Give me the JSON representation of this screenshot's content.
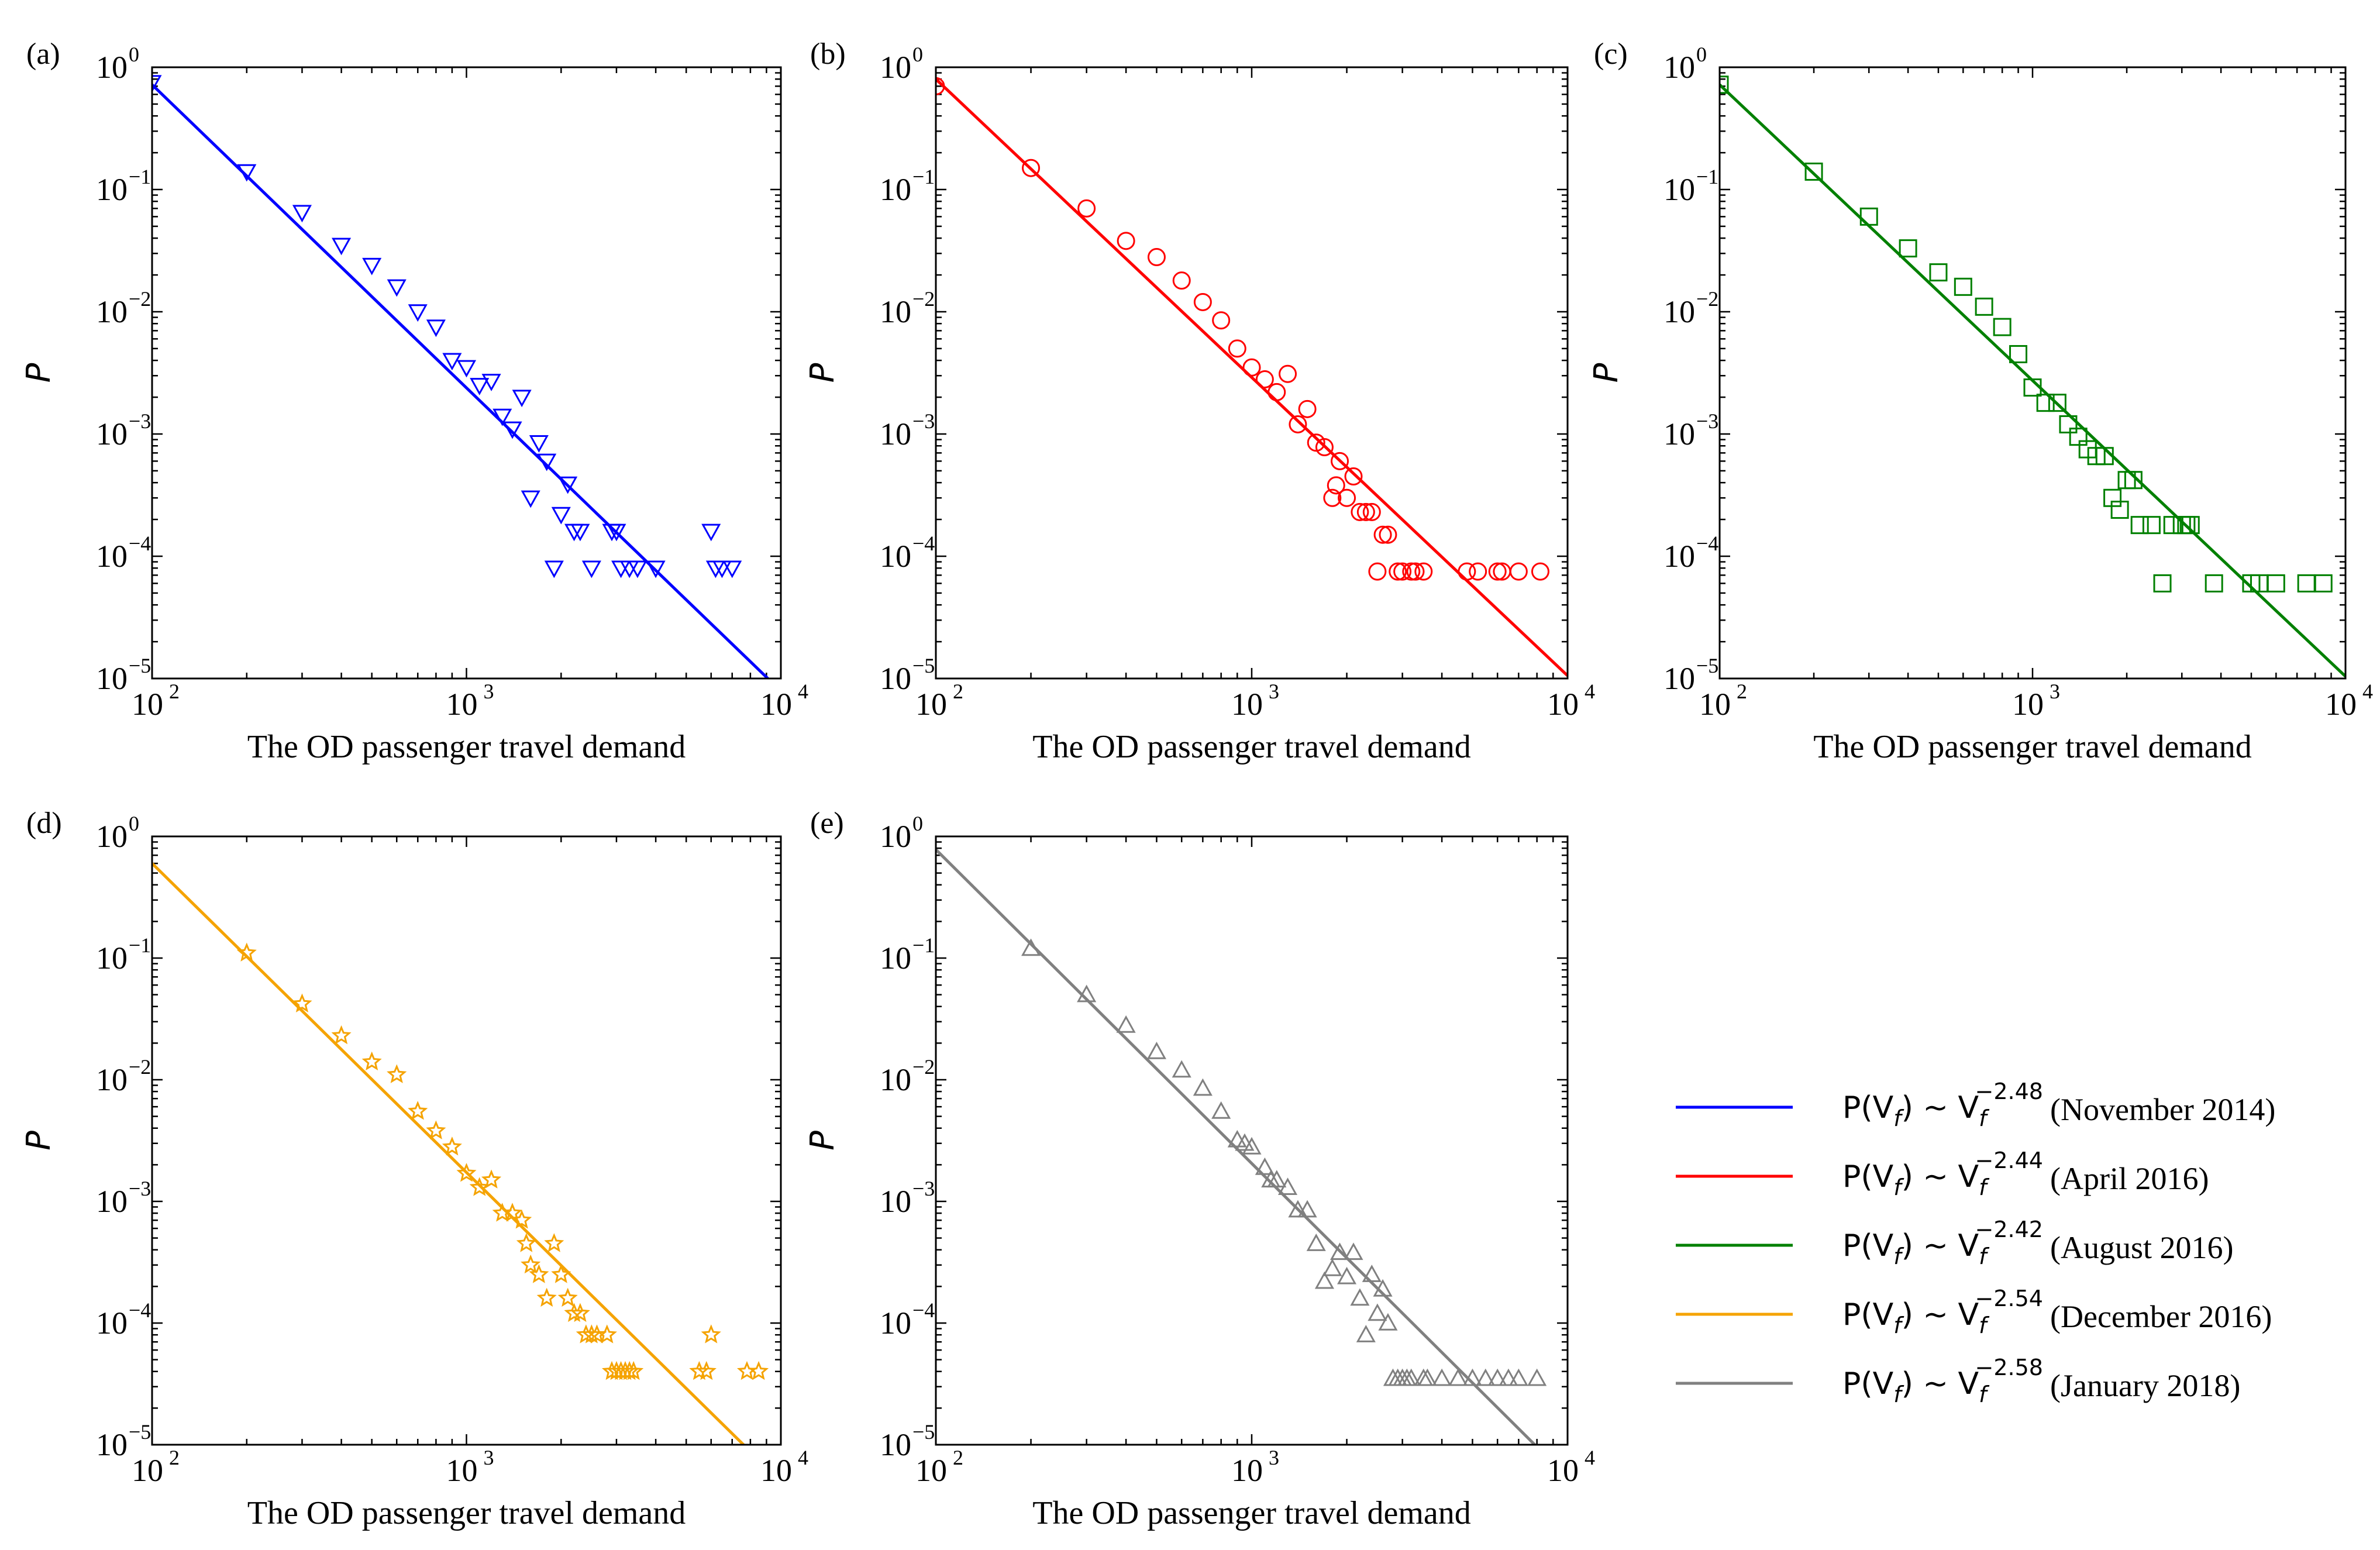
{
  "chart_data": [
    {
      "type": "scatter",
      "panel_label": "(a)",
      "xlabel": "The OD passenger travel demand",
      "ylabel": "P",
      "xscale": "log",
      "yscale": "log",
      "xlim": [
        100,
        10000
      ],
      "ylim": [
        1e-05,
        1
      ],
      "x_ticks": [
        {
          "base": "10",
          "exp": "2"
        },
        {
          "base": "10",
          "exp": "3"
        },
        {
          "base": "10",
          "exp": "4"
        }
      ],
      "y_ticks": [
        {
          "base": "10",
          "exp": "0"
        },
        {
          "base": "10",
          "exp": "−1"
        },
        {
          "base": "10",
          "exp": "−2"
        },
        {
          "base": "10",
          "exp": "−3"
        },
        {
          "base": "10",
          "exp": "−4"
        },
        {
          "base": "10",
          "exp": "−5"
        }
      ],
      "color": "#0000ff",
      "marker": "triangle-down",
      "fit": {
        "exponent": -2.48,
        "coef": 0.72
      },
      "series": [
        {
          "name": "November 2014",
          "x": [
            100,
            200,
            300,
            400,
            500,
            600,
            700,
            800,
            900,
            1000,
            1100,
            1200,
            1300,
            1400,
            1500,
            1600,
            1700,
            1800,
            1900,
            2000,
            2100,
            2200,
            2300,
            2500,
            2900,
            3000,
            3100,
            3300,
            3500,
            4000,
            6000,
            6200,
            6500,
            7000
          ],
          "y": [
            0.75,
            0.14,
            0.065,
            0.035,
            0.024,
            0.016,
            0.01,
            0.0075,
            0.004,
            0.0035,
            0.0025,
            0.0027,
            0.0014,
            0.0011,
            0.002,
            0.0003,
            0.00085,
            0.0006,
            8e-05,
            0.00022,
            0.00039,
            0.00016,
            0.00016,
            8e-05,
            0.00016,
            0.00016,
            8e-05,
            8e-05,
            8e-05,
            8e-05,
            0.00016,
            8e-05,
            8e-05,
            8e-05
          ]
        }
      ]
    },
    {
      "type": "scatter",
      "panel_label": "(b)",
      "xlabel": "The OD passenger travel demand",
      "ylabel": "P",
      "xscale": "log",
      "yscale": "log",
      "xlim": [
        100,
        10000
      ],
      "ylim": [
        1e-05,
        1
      ],
      "x_ticks": [
        {
          "base": "10",
          "exp": "2"
        },
        {
          "base": "10",
          "exp": "3"
        },
        {
          "base": "10",
          "exp": "4"
        }
      ],
      "y_ticks": [
        {
          "base": "10",
          "exp": "0"
        },
        {
          "base": "10",
          "exp": "−1"
        },
        {
          "base": "10",
          "exp": "−2"
        },
        {
          "base": "10",
          "exp": "−3"
        },
        {
          "base": "10",
          "exp": "−4"
        },
        {
          "base": "10",
          "exp": "−5"
        }
      ],
      "color": "#ff0000",
      "marker": "circle",
      "fit": {
        "exponent": -2.44,
        "coef": 0.8
      },
      "series": [
        {
          "name": "April 2016",
          "x": [
            100,
            200,
            300,
            400,
            500,
            600,
            700,
            800,
            900,
            1000,
            1100,
            1200,
            1300,
            1400,
            1500,
            1600,
            1700,
            1800,
            1850,
            1900,
            2000,
            2100,
            2200,
            2300,
            2400,
            2500,
            2600,
            2700,
            2900,
            3000,
            3200,
            3300,
            3500,
            4800,
            5200,
            6000,
            6200,
            7000,
            8200
          ],
          "y": [
            0.7,
            0.15,
            0.07,
            0.038,
            0.028,
            0.018,
            0.012,
            0.0085,
            0.005,
            0.0035,
            0.0028,
            0.0022,
            0.0031,
            0.0012,
            0.0016,
            0.00085,
            0.00078,
            0.0003,
            0.00038,
            0.0006,
            0.0003,
            0.00045,
            0.00023,
            0.00023,
            0.00023,
            7.5e-05,
            0.00015,
            0.00015,
            7.5e-05,
            7.5e-05,
            7.5e-05,
            7.5e-05,
            7.5e-05,
            7.5e-05,
            7.5e-05,
            7.5e-05,
            7.5e-05,
            7.5e-05,
            7.5e-05
          ]
        }
      ]
    },
    {
      "type": "scatter",
      "panel_label": "(c)",
      "xlabel": "The OD passenger travel demand",
      "ylabel": "P",
      "xscale": "log",
      "yscale": "log",
      "xlim": [
        100,
        10000
      ],
      "ylim": [
        1e-05,
        1
      ],
      "x_ticks": [
        {
          "base": "10",
          "exp": "2"
        },
        {
          "base": "10",
          "exp": "3"
        },
        {
          "base": "10",
          "exp": "4"
        }
      ],
      "y_ticks": [
        {
          "base": "10",
          "exp": "0"
        },
        {
          "base": "10",
          "exp": "−1"
        },
        {
          "base": "10",
          "exp": "−2"
        },
        {
          "base": "10",
          "exp": "−3"
        },
        {
          "base": "10",
          "exp": "−4"
        },
        {
          "base": "10",
          "exp": "−5"
        }
      ],
      "color": "#008000",
      "marker": "square",
      "fit": {
        "exponent": -2.42,
        "coef": 0.72
      },
      "series": [
        {
          "name": "August 2016",
          "x": [
            100,
            200,
            300,
            400,
            500,
            600,
            700,
            800,
            900,
            1000,
            1100,
            1200,
            1300,
            1400,
            1500,
            1600,
            1700,
            1800,
            1900,
            2000,
            2100,
            2200,
            2400,
            2600,
            2800,
            3000,
            3100,
            3200,
            3800,
            5000,
            5300,
            6000,
            7500,
            8500
          ],
          "y": [
            0.72,
            0.14,
            0.06,
            0.033,
            0.021,
            0.016,
            0.011,
            0.0075,
            0.0045,
            0.0024,
            0.0018,
            0.0018,
            0.0012,
            0.00095,
            0.00075,
            0.00066,
            0.00066,
            0.0003,
            0.00024,
            0.00042,
            0.00042,
            0.00018,
            0.00018,
            6e-05,
            0.00018,
            0.00018,
            0.00018,
            0.00018,
            6e-05,
            6e-05,
            6e-05,
            6e-05,
            6e-05,
            6e-05
          ]
        }
      ]
    },
    {
      "type": "scatter",
      "panel_label": "(d)",
      "xlabel": "The OD passenger travel demand",
      "ylabel": "P",
      "xscale": "log",
      "yscale": "log",
      "xlim": [
        100,
        10000
      ],
      "ylim": [
        1e-05,
        1
      ],
      "x_ticks": [
        {
          "base": "10",
          "exp": "2"
        },
        {
          "base": "10",
          "exp": "3"
        },
        {
          "base": "10",
          "exp": "4"
        }
      ],
      "y_ticks": [
        {
          "base": "10",
          "exp": "0"
        },
        {
          "base": "10",
          "exp": "−1"
        },
        {
          "base": "10",
          "exp": "−2"
        },
        {
          "base": "10",
          "exp": "−3"
        },
        {
          "base": "10",
          "exp": "−4"
        },
        {
          "base": "10",
          "exp": "−5"
        }
      ],
      "color": "#f5a300",
      "marker": "star",
      "fit": {
        "exponent": -2.54,
        "coef": 0.6
      },
      "series": [
        {
          "name": "December 2016",
          "x": [
            200,
            300,
            400,
            500,
            600,
            700,
            800,
            900,
            1000,
            1100,
            1200,
            1300,
            1400,
            1500,
            1550,
            1600,
            1700,
            1800,
            1900,
            2000,
            2100,
            2200,
            2300,
            2400,
            2500,
            2600,
            2800,
            2900,
            3000,
            3100,
            3200,
            3300,
            3400,
            5500,
            5800,
            6000,
            7800,
            8500
          ],
          "y": [
            0.11,
            0.042,
            0.023,
            0.014,
            0.011,
            0.0055,
            0.0038,
            0.0028,
            0.0017,
            0.0013,
            0.0015,
            0.0008,
            0.0008,
            0.0007,
            0.00045,
            0.0003,
            0.00025,
            0.00016,
            0.00045,
            0.00025,
            0.00016,
            0.00012,
            0.00012,
            8e-05,
            8e-05,
            8e-05,
            8e-05,
            4e-05,
            4e-05,
            4e-05,
            4e-05,
            4e-05,
            4e-05,
            4e-05,
            4e-05,
            8e-05,
            4e-05,
            4e-05
          ]
        }
      ]
    },
    {
      "type": "scatter",
      "panel_label": "(e)",
      "xlabel": "The OD passenger travel demand",
      "ylabel": "P",
      "xscale": "log",
      "yscale": "log",
      "xlim": [
        100,
        10000
      ],
      "ylim": [
        1e-05,
        1
      ],
      "x_ticks": [
        {
          "base": "10",
          "exp": "2"
        },
        {
          "base": "10",
          "exp": "3"
        },
        {
          "base": "10",
          "exp": "4"
        }
      ],
      "y_ticks": [
        {
          "base": "10",
          "exp": "0"
        },
        {
          "base": "10",
          "exp": "−1"
        },
        {
          "base": "10",
          "exp": "−2"
        },
        {
          "base": "10",
          "exp": "−3"
        },
        {
          "base": "10",
          "exp": "−4"
        },
        {
          "base": "10",
          "exp": "−5"
        }
      ],
      "color": "#808080",
      "marker": "triangle-up",
      "fit": {
        "exponent": -2.58,
        "coef": 0.78
      },
      "series": [
        {
          "name": "January 2018",
          "x": [
            200,
            300,
            400,
            500,
            600,
            700,
            800,
            900,
            950,
            1000,
            1100,
            1150,
            1200,
            1300,
            1400,
            1500,
            1600,
            1700,
            1800,
            1900,
            2000,
            2100,
            2200,
            2300,
            2400,
            2500,
            2600,
            2700,
            2800,
            2900,
            3000,
            3100,
            3200,
            3500,
            3600,
            4000,
            4500,
            5000,
            5500,
            6000,
            6500,
            7000,
            8000
          ],
          "y": [
            0.12,
            0.05,
            0.028,
            0.017,
            0.012,
            0.0085,
            0.0055,
            0.0032,
            0.003,
            0.0028,
            0.0019,
            0.0015,
            0.0015,
            0.0013,
            0.00085,
            0.00085,
            0.00045,
            0.00022,
            0.00028,
            0.00038,
            0.00024,
            0.00038,
            0.00016,
            8e-05,
            0.00025,
            0.00012,
            0.00019,
            0.0001,
            3.5e-05,
            3.5e-05,
            3.5e-05,
            3.5e-05,
            3.5e-05,
            3.5e-05,
            3.5e-05,
            3.5e-05,
            3.5e-05,
            3.5e-05,
            3.5e-05,
            3.5e-05,
            3.5e-05,
            3.5e-05,
            3.5e-05
          ]
        }
      ]
    }
  ],
  "legend": {
    "placement": "right",
    "entries": [
      {
        "formula_lhs": "P(V",
        "formula_sub": "f",
        "formula_mid": ") ~ V",
        "formula_sub2": "f",
        "formula_exp": "−2.48",
        "month": "(November 2014)",
        "color": "#0000ff"
      },
      {
        "formula_lhs": "P(V",
        "formula_sub": "f",
        "formula_mid": ") ~ V",
        "formula_sub2": "f",
        "formula_exp": "−2.44",
        "month": "(April 2016)",
        "color": "#ff0000"
      },
      {
        "formula_lhs": "P(V",
        "formula_sub": "f",
        "formula_mid": ") ~ V",
        "formula_sub2": "f",
        "formula_exp": "−2.42",
        "month": "(August 2016)",
        "color": "#008000"
      },
      {
        "formula_lhs": "P(V",
        "formula_sub": "f",
        "formula_mid": ") ~ V",
        "formula_sub2": "f",
        "formula_exp": "−2.54",
        "month": "(December 2016)",
        "color": "#f5a300"
      },
      {
        "formula_lhs": "P(V",
        "formula_sub": "f",
        "formula_mid": ") ~ V",
        "formula_sub2": "f",
        "formula_exp": "−2.58",
        "month": "(January 2018)",
        "color": "#808080"
      }
    ]
  }
}
